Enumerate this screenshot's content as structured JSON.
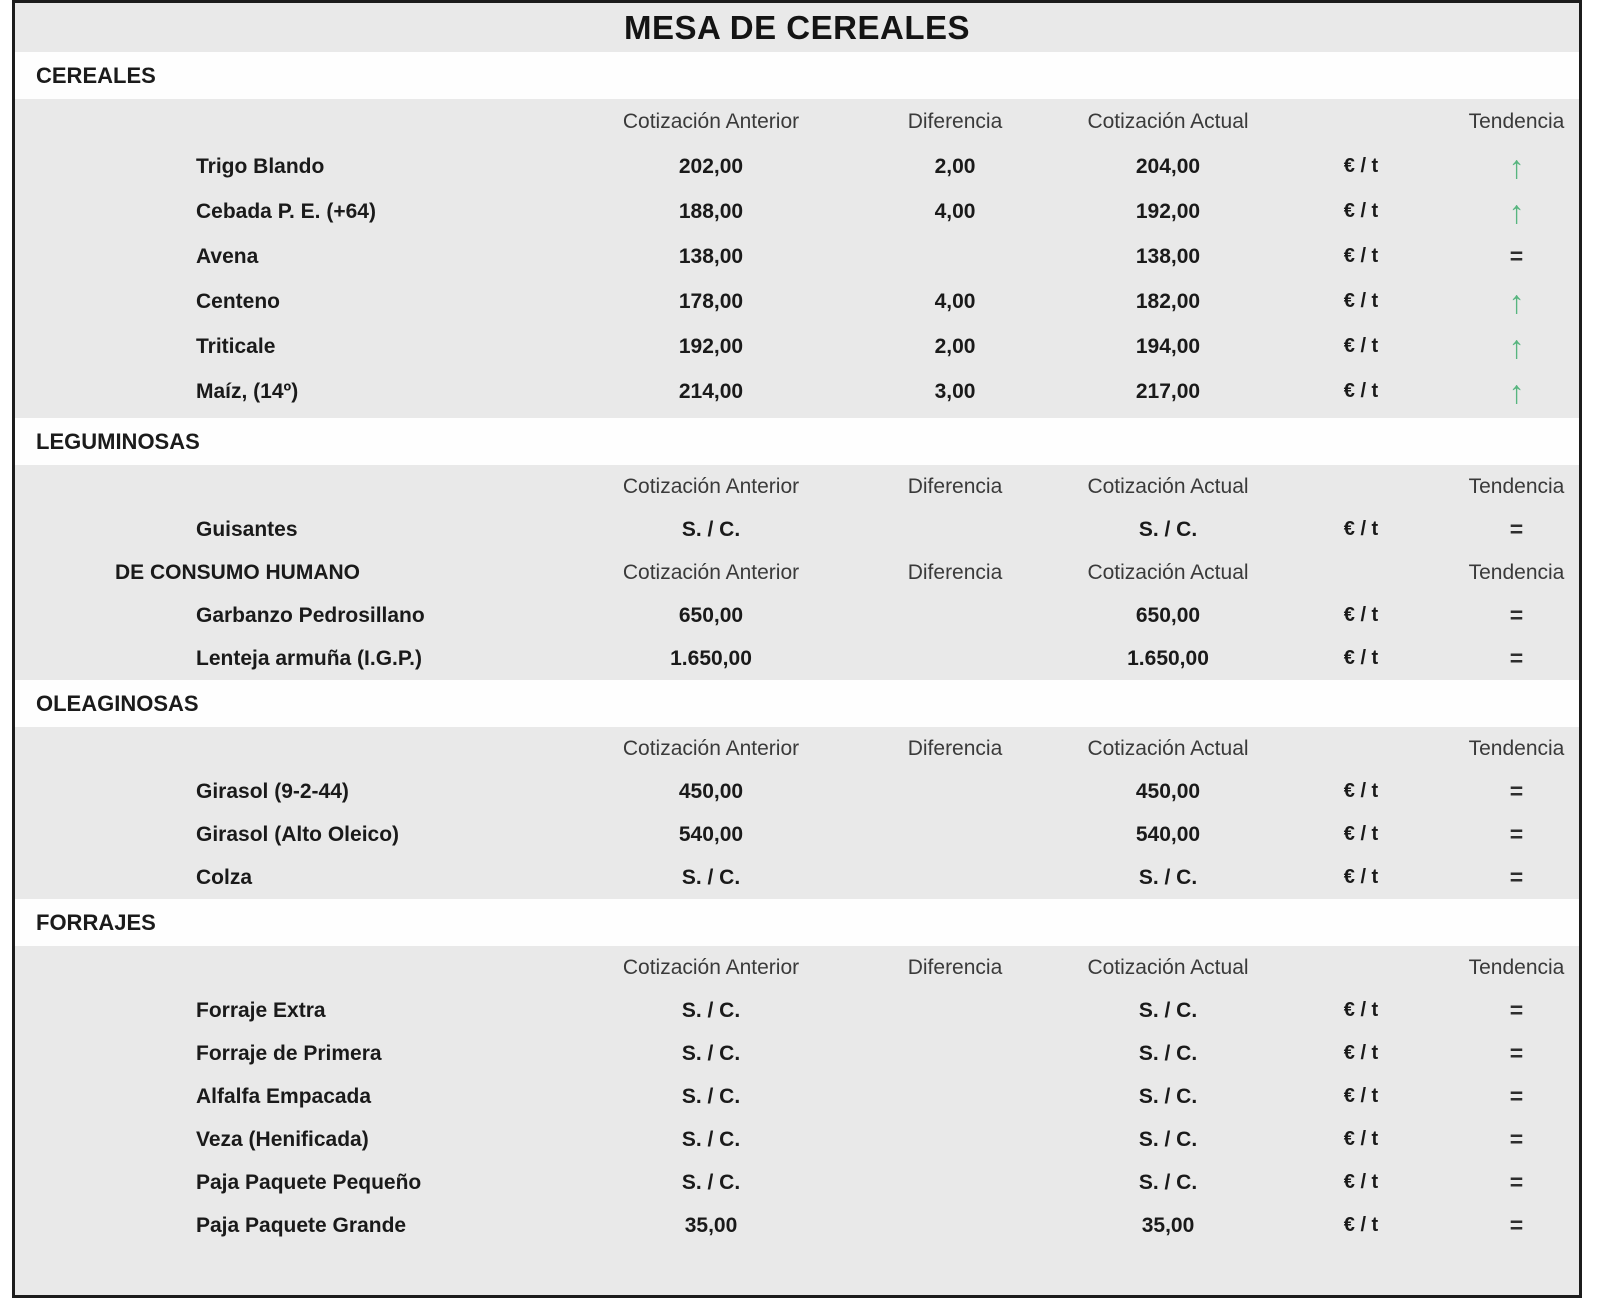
{
  "title": "MESA DE CEREALES",
  "unit": "€ / t",
  "symbols": {
    "up": "↑",
    "equal": "="
  },
  "colors": {
    "trend_up_green": "#57b57f",
    "trend_equal_dark": "#2d2d2d",
    "band_gray": "#e9e9e9",
    "band_white": "#fefefe",
    "border_black": "#1c1c1c"
  },
  "columns": {
    "previous": "Cotización Anterior",
    "difference": "Diferencia",
    "current": "Cotización Actual",
    "trend": "Tendencia"
  },
  "sections": [
    {
      "name": "CEREALES",
      "groups": [
        {
          "label": "",
          "rows": [
            {
              "name": "Trigo Blando",
              "prev": "202,00",
              "diff": "2,00",
              "curr": "204,00",
              "trend": "up"
            },
            {
              "name": "Cebada P. E. (+64)",
              "prev": "188,00",
              "diff": "4,00",
              "curr": "192,00",
              "trend": "up"
            },
            {
              "name": "Avena",
              "prev": "138,00",
              "diff": "",
              "curr": "138,00",
              "trend": "eq"
            },
            {
              "name": "Centeno",
              "prev": "178,00",
              "diff": "4,00",
              "curr": "182,00",
              "trend": "up"
            },
            {
              "name": "Triticale",
              "prev": "192,00",
              "diff": "2,00",
              "curr": "194,00",
              "trend": "up"
            },
            {
              "name": "Maíz, (14º)",
              "prev": "214,00",
              "diff": "3,00",
              "curr": "217,00",
              "trend": "up"
            }
          ]
        }
      ]
    },
    {
      "name": "LEGUMINOSAS",
      "groups": [
        {
          "label": "",
          "rows": [
            {
              "name": "Guisantes",
              "prev": "S. / C.",
              "diff": "",
              "curr": "S. / C.",
              "trend": "eq"
            }
          ]
        },
        {
          "label": "DE CONSUMO HUMANO",
          "rows": [
            {
              "name": "Garbanzo Pedrosillano",
              "prev": "650,00",
              "diff": "",
              "curr": "650,00",
              "trend": "eq"
            },
            {
              "name": "Lenteja armuña (I.G.P.)",
              "prev": "1.650,00",
              "diff": "",
              "curr": "1.650,00",
              "trend": "eq"
            }
          ]
        }
      ]
    },
    {
      "name": "OLEAGINOSAS",
      "groups": [
        {
          "label": "",
          "rows": [
            {
              "name": "Girasol (9-2-44)",
              "prev": "450,00",
              "diff": "",
              "curr": "450,00",
              "trend": "eq"
            },
            {
              "name": "Girasol (Alto Oleico)",
              "prev": "540,00",
              "diff": "",
              "curr": "540,00",
              "trend": "eq"
            },
            {
              "name": "Colza",
              "prev": "S. / C.",
              "diff": "",
              "curr": "S. / C.",
              "trend": "eq"
            }
          ]
        }
      ]
    },
    {
      "name": "FORRAJES",
      "groups": [
        {
          "label": "",
          "rows": [
            {
              "name": "Forraje Extra",
              "prev": "S. / C.",
              "diff": "",
              "curr": "S. / C.",
              "trend": "eq"
            },
            {
              "name": "Forraje de Primera",
              "prev": "S. / C.",
              "diff": "",
              "curr": "S. / C.",
              "trend": "eq"
            },
            {
              "name": "Alfalfa Empacada",
              "prev": "S. / C.",
              "diff": "",
              "curr": "S. / C.",
              "trend": "eq"
            },
            {
              "name": "Veza (Henificada)",
              "prev": "S. / C.",
              "diff": "",
              "curr": "S. / C.",
              "trend": "eq"
            },
            {
              "name": "Paja Paquete Pequeño",
              "prev": "S. / C.",
              "diff": "",
              "curr": "S. / C.",
              "trend": "eq"
            },
            {
              "name": "Paja Paquete Grande",
              "prev": "35,00",
              "diff": "",
              "curr": "35,00",
              "trend": "eq"
            }
          ]
        }
      ]
    }
  ]
}
